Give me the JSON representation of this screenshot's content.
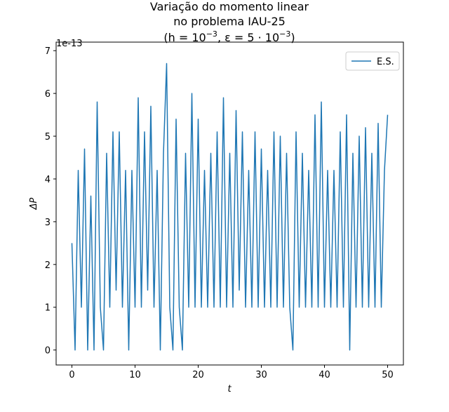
{
  "chart_data": {
    "type": "line",
    "title_lines": [
      "Variação do momento linear",
      "no problema IAU-25"
    ],
    "title_math": [
      {
        "text": "(h = 10"
      },
      {
        "text": "−3",
        "sup": true
      },
      {
        "text": ", ε = 5 · 10"
      },
      {
        "text": "−3",
        "sup": true
      },
      {
        "text": ")"
      }
    ],
    "xlabel": "t",
    "ylabel": "ΔP",
    "y_offset_text": "1e-13",
    "legend": "upper right",
    "xlim": [
      -2.5,
      52.5
    ],
    "ylim": [
      -0.35,
      7.2
    ],
    "xticks": [
      0,
      10,
      20,
      30,
      40,
      50
    ],
    "yticks": [
      0,
      1,
      2,
      3,
      4,
      5,
      6,
      7
    ],
    "x": [
      0,
      0.5,
      1,
      1.5,
      2,
      2.5,
      3,
      3.5,
      4,
      4.5,
      5,
      5.5,
      6,
      6.5,
      7,
      7.5,
      8,
      8.5,
      9,
      9.5,
      10,
      10.5,
      11,
      11.5,
      12,
      12.5,
      13,
      13.5,
      14,
      14.5,
      15,
      15.5,
      16,
      16.5,
      17,
      17.5,
      18,
      18.5,
      19,
      19.5,
      20,
      20.5,
      21,
      21.5,
      22,
      22.5,
      23,
      23.5,
      24,
      24.5,
      25,
      25.5,
      26,
      26.5,
      27,
      27.5,
      28,
      28.5,
      29,
      29.5,
      30,
      30.5,
      31,
      31.5,
      32,
      32.5,
      33,
      33.5,
      34,
      34.5,
      35,
      35.5,
      36,
      36.5,
      37,
      37.5,
      38,
      38.5,
      39,
      39.5,
      40,
      40.5,
      41,
      41.5,
      42,
      42.5,
      43,
      43.5,
      44,
      44.5,
      45,
      45.5,
      46,
      46.5,
      47,
      47.5,
      48,
      48.5,
      49,
      49.5,
      50
    ],
    "series": [
      {
        "name": "E.S.",
        "color": "#1f77b4",
        "values": [
          2.5,
          0,
          4.2,
          1,
          4.7,
          0,
          3.6,
          0,
          5.8,
          1,
          0,
          4.6,
          1,
          5.1,
          1.4,
          5.1,
          1,
          4.2,
          0,
          4.2,
          1,
          5.9,
          1,
          5.1,
          1.4,
          5.7,
          1,
          4.2,
          0,
          4.6,
          6.7,
          1,
          0,
          5.4,
          1,
          0,
          4.6,
          1,
          6.0,
          1,
          5.4,
          1,
          4.2,
          1,
          4.6,
          1,
          5.1,
          1,
          5.9,
          1,
          4.6,
          1,
          5.6,
          1.4,
          5.1,
          1,
          4.2,
          1,
          5.1,
          1,
          4.7,
          1,
          4.2,
          1,
          5.1,
          1,
          5.0,
          1,
          4.6,
          1,
          0,
          5.1,
          1,
          4.6,
          1,
          4.2,
          1,
          5.5,
          1,
          5.8,
          1,
          4.2,
          1,
          4.2,
          1,
          5.1,
          1,
          5.5,
          0,
          4.6,
          1,
          5.0,
          1,
          5.2,
          1,
          4.6,
          1,
          5.3,
          1,
          4.2,
          5.5
        ]
      }
    ]
  }
}
